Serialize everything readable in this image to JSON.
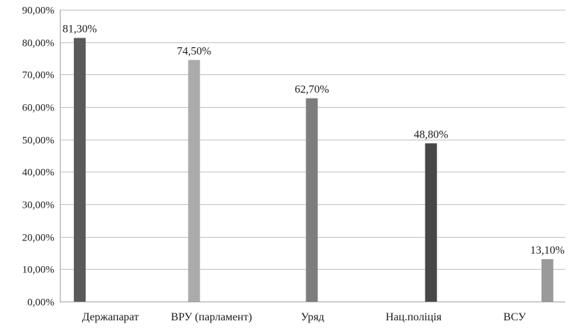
{
  "chart_data": {
    "type": "bar",
    "categories": [
      "Держапарат",
      "ВРУ (парламент)",
      "Уряд",
      "Нац.поліція",
      "ВСУ"
    ],
    "values": [
      81.3,
      74.5,
      62.7,
      48.8,
      13.1
    ],
    "data_labels": [
      "81,30%",
      "74,50%",
      "62,70%",
      "48,80%",
      "13,10%"
    ],
    "bar_colors": [
      "#5a5a5a",
      "#ababab",
      "#7d7d7d",
      "#474747",
      "#9a9a9a"
    ],
    "ylim": [
      0,
      90
    ],
    "yticks": [
      0,
      10,
      20,
      30,
      40,
      50,
      60,
      70,
      80,
      90
    ],
    "ytick_labels": [
      "0,00%",
      "10,00%",
      "20,00%",
      "30,00%",
      "40,00%",
      "50,00%",
      "60,00%",
      "70,00%",
      "80,00%",
      "90,00%"
    ],
    "grid": true,
    "legend": false
  }
}
